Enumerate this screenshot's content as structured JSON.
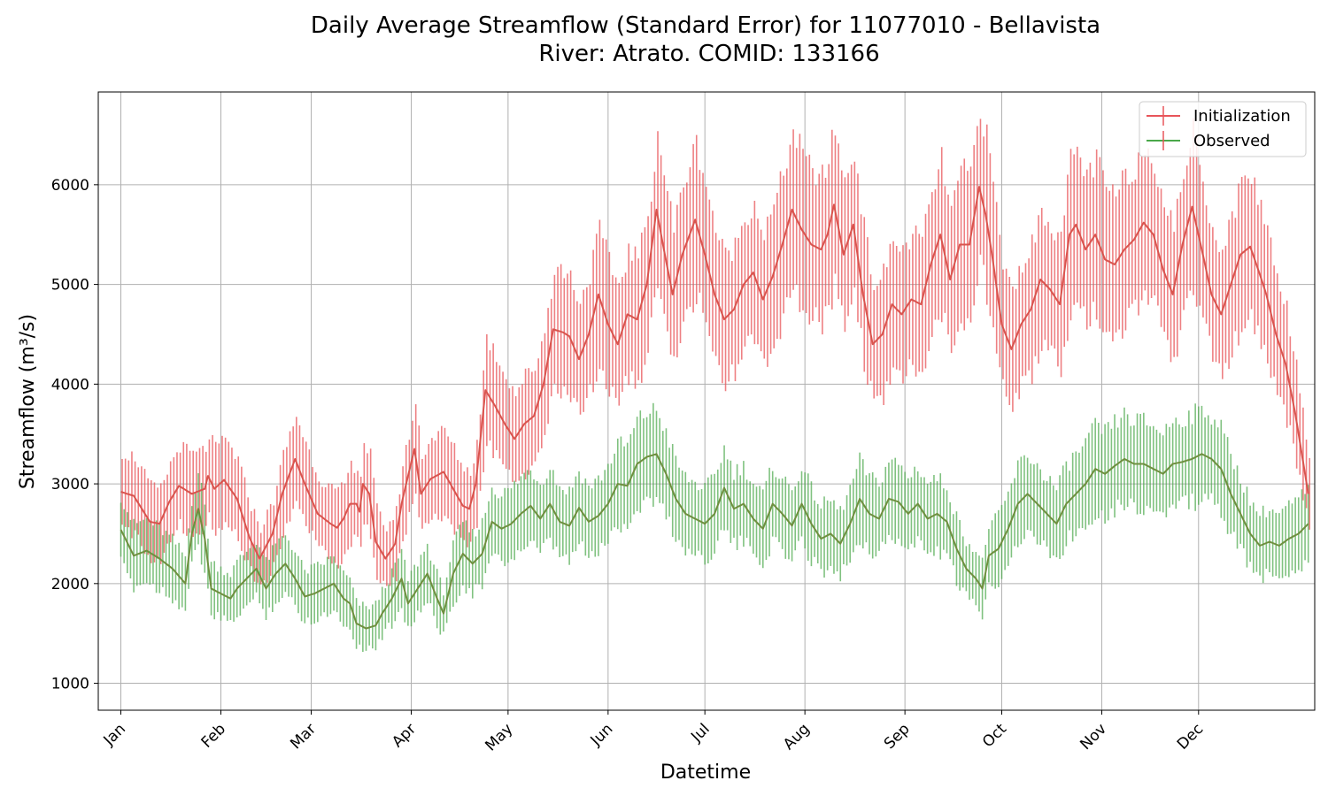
{
  "chart_data": {
    "type": "line",
    "title_line1": "Daily Average Streamflow (Standard Error) for 11077010 - Bellavista",
    "title_line2": "River: Atrato. COMID: 133166",
    "xlabel": "Datetime",
    "ylabel": "Streamflow (m³/s)",
    "ylim": [
      730,
      6930
    ],
    "yticks": [
      1000,
      2000,
      3000,
      4000,
      5000,
      6000
    ],
    "xlim": [
      -6,
      371
    ],
    "xtick_labels": [
      "Jan",
      "Feb",
      "Mar",
      "Apr",
      "May",
      "Jun",
      "Jul",
      "Aug",
      "Sep",
      "Oct",
      "Nov",
      "Dec"
    ],
    "xtick_days": [
      1,
      32,
      60,
      91,
      121,
      152,
      182,
      213,
      244,
      274,
      305,
      335
    ],
    "grid": true,
    "legend_position": "top-right",
    "error_bars": "standard error",
    "series": [
      {
        "name": "Initialization",
        "color": "#e8555a",
        "keypoints": [
          [
            1,
            2920
          ],
          [
            5,
            2880
          ],
          [
            10,
            2620
          ],
          [
            13,
            2600
          ],
          [
            16,
            2820
          ],
          [
            19,
            2980
          ],
          [
            23,
            2900
          ],
          [
            27,
            2950
          ],
          [
            28,
            3080
          ],
          [
            30,
            2950
          ],
          [
            33,
            3040
          ],
          [
            37,
            2850
          ],
          [
            41,
            2450
          ],
          [
            44,
            2250
          ],
          [
            48,
            2500
          ],
          [
            51,
            2900
          ],
          [
            55,
            3250
          ],
          [
            58,
            3000
          ],
          [
            62,
            2700
          ],
          [
            66,
            2600
          ],
          [
            68,
            2560
          ],
          [
            70,
            2650
          ],
          [
            72,
            2800
          ],
          [
            74,
            2800
          ],
          [
            75,
            2720
          ],
          [
            76,
            3000
          ],
          [
            78,
            2900
          ],
          [
            80,
            2420
          ],
          [
            83,
            2250
          ],
          [
            86,
            2400
          ],
          [
            88,
            2800
          ],
          [
            90,
            3080
          ],
          [
            92,
            3350
          ],
          [
            94,
            2900
          ],
          [
            97,
            3050
          ],
          [
            101,
            3120
          ],
          [
            104,
            2950
          ],
          [
            107,
            2780
          ],
          [
            109,
            2750
          ],
          [
            111,
            3000
          ],
          [
            114,
            3940
          ],
          [
            117,
            3780
          ],
          [
            120,
            3600
          ],
          [
            123,
            3450
          ],
          [
            126,
            3600
          ],
          [
            129,
            3680
          ],
          [
            132,
            4000
          ],
          [
            135,
            4550
          ],
          [
            138,
            4520
          ],
          [
            140,
            4480
          ],
          [
            143,
            4250
          ],
          [
            146,
            4500
          ],
          [
            149,
            4900
          ],
          [
            152,
            4600
          ],
          [
            155,
            4400
          ],
          [
            158,
            4700
          ],
          [
            161,
            4650
          ],
          [
            164,
            5000
          ],
          [
            167,
            5750
          ],
          [
            169,
            5400
          ],
          [
            172,
            4900
          ],
          [
            175,
            5300
          ],
          [
            179,
            5650
          ],
          [
            182,
            5300
          ],
          [
            185,
            4900
          ],
          [
            188,
            4650
          ],
          [
            191,
            4750
          ],
          [
            194,
            5000
          ],
          [
            197,
            5120
          ],
          [
            200,
            4850
          ],
          [
            203,
            5080
          ],
          [
            206,
            5400
          ],
          [
            209,
            5750
          ],
          [
            212,
            5550
          ],
          [
            215,
            5400
          ],
          [
            218,
            5350
          ],
          [
            220,
            5500
          ],
          [
            222,
            5800
          ],
          [
            225,
            5300
          ],
          [
            228,
            5600
          ],
          [
            231,
            4900
          ],
          [
            234,
            4400
          ],
          [
            237,
            4500
          ],
          [
            240,
            4800
          ],
          [
            243,
            4700
          ],
          [
            246,
            4850
          ],
          [
            249,
            4800
          ],
          [
            252,
            5200
          ],
          [
            255,
            5500
          ],
          [
            258,
            5050
          ],
          [
            261,
            5400
          ],
          [
            264,
            5400
          ],
          [
            267,
            5980
          ],
          [
            269,
            5700
          ],
          [
            271,
            5300
          ],
          [
            274,
            4600
          ],
          [
            277,
            4350
          ],
          [
            280,
            4600
          ],
          [
            283,
            4750
          ],
          [
            286,
            5050
          ],
          [
            289,
            4950
          ],
          [
            292,
            4800
          ],
          [
            295,
            5500
          ],
          [
            297,
            5600
          ],
          [
            300,
            5350
          ],
          [
            303,
            5500
          ],
          [
            306,
            5250
          ],
          [
            309,
            5200
          ],
          [
            312,
            5350
          ],
          [
            315,
            5450
          ],
          [
            318,
            5620
          ],
          [
            321,
            5500
          ],
          [
            324,
            5150
          ],
          [
            327,
            4900
          ],
          [
            330,
            5400
          ],
          [
            333,
            5780
          ],
          [
            336,
            5350
          ],
          [
            339,
            4900
          ],
          [
            342,
            4700
          ],
          [
            345,
            5000
          ],
          [
            348,
            5300
          ],
          [
            351,
            5380
          ],
          [
            354,
            5100
          ],
          [
            356,
            4900
          ],
          [
            359,
            4500
          ],
          [
            362,
            4200
          ],
          [
            365,
            3700
          ],
          [
            368,
            3100
          ],
          [
            369,
            2900
          ]
        ]
      },
      {
        "name": "Observed",
        "color": "#4aa84a",
        "keypoints": [
          [
            1,
            2540
          ],
          [
            5,
            2280
          ],
          [
            9,
            2330
          ],
          [
            13,
            2250
          ],
          [
            17,
            2150
          ],
          [
            21,
            2000
          ],
          [
            23,
            2500
          ],
          [
            25,
            2750
          ],
          [
            27,
            2450
          ],
          [
            29,
            1950
          ],
          [
            32,
            1900
          ],
          [
            35,
            1850
          ],
          [
            37,
            1950
          ],
          [
            40,
            2050
          ],
          [
            43,
            2150
          ],
          [
            46,
            1950
          ],
          [
            49,
            2100
          ],
          [
            52,
            2200
          ],
          [
            55,
            2050
          ],
          [
            58,
            1870
          ],
          [
            61,
            1900
          ],
          [
            64,
            1950
          ],
          [
            67,
            2000
          ],
          [
            70,
            1850
          ],
          [
            72,
            1800
          ],
          [
            74,
            1600
          ],
          [
            77,
            1550
          ],
          [
            80,
            1580
          ],
          [
            82,
            1700
          ],
          [
            85,
            1850
          ],
          [
            88,
            2050
          ],
          [
            90,
            1800
          ],
          [
            93,
            1950
          ],
          [
            96,
            2100
          ],
          [
            99,
            1850
          ],
          [
            101,
            1700
          ],
          [
            104,
            2100
          ],
          [
            107,
            2300
          ],
          [
            110,
            2200
          ],
          [
            113,
            2300
          ],
          [
            116,
            2620
          ],
          [
            119,
            2550
          ],
          [
            122,
            2600
          ],
          [
            125,
            2700
          ],
          [
            128,
            2780
          ],
          [
            131,
            2650
          ],
          [
            134,
            2800
          ],
          [
            137,
            2620
          ],
          [
            140,
            2580
          ],
          [
            143,
            2760
          ],
          [
            146,
            2620
          ],
          [
            149,
            2680
          ],
          [
            152,
            2800
          ],
          [
            155,
            3000
          ],
          [
            158,
            2980
          ],
          [
            161,
            3200
          ],
          [
            164,
            3270
          ],
          [
            167,
            3300
          ],
          [
            170,
            3100
          ],
          [
            173,
            2850
          ],
          [
            176,
            2700
          ],
          [
            179,
            2650
          ],
          [
            182,
            2600
          ],
          [
            185,
            2700
          ],
          [
            188,
            2960
          ],
          [
            191,
            2750
          ],
          [
            194,
            2800
          ],
          [
            197,
            2650
          ],
          [
            200,
            2550
          ],
          [
            203,
            2800
          ],
          [
            206,
            2700
          ],
          [
            209,
            2580
          ],
          [
            212,
            2800
          ],
          [
            215,
            2600
          ],
          [
            218,
            2450
          ],
          [
            221,
            2500
          ],
          [
            224,
            2400
          ],
          [
            227,
            2600
          ],
          [
            230,
            2850
          ],
          [
            233,
            2700
          ],
          [
            236,
            2650
          ],
          [
            239,
            2850
          ],
          [
            242,
            2820
          ],
          [
            245,
            2700
          ],
          [
            248,
            2800
          ],
          [
            251,
            2650
          ],
          [
            254,
            2700
          ],
          [
            257,
            2620
          ],
          [
            260,
            2350
          ],
          [
            263,
            2150
          ],
          [
            266,
            2050
          ],
          [
            268,
            1950
          ],
          [
            270,
            2280
          ],
          [
            273,
            2350
          ],
          [
            276,
            2550
          ],
          [
            279,
            2800
          ],
          [
            282,
            2900
          ],
          [
            285,
            2800
          ],
          [
            288,
            2700
          ],
          [
            291,
            2600
          ],
          [
            294,
            2800
          ],
          [
            297,
            2900
          ],
          [
            300,
            3000
          ],
          [
            303,
            3150
          ],
          [
            306,
            3100
          ],
          [
            309,
            3180
          ],
          [
            312,
            3250
          ],
          [
            315,
            3200
          ],
          [
            318,
            3200
          ],
          [
            321,
            3150
          ],
          [
            324,
            3100
          ],
          [
            327,
            3200
          ],
          [
            330,
            3220
          ],
          [
            333,
            3250
          ],
          [
            336,
            3300
          ],
          [
            339,
            3250
          ],
          [
            342,
            3150
          ],
          [
            345,
            2900
          ],
          [
            348,
            2700
          ],
          [
            351,
            2500
          ],
          [
            354,
            2380
          ],
          [
            357,
            2420
          ],
          [
            360,
            2380
          ],
          [
            363,
            2450
          ],
          [
            366,
            2500
          ],
          [
            369,
            2600
          ]
        ]
      }
    ]
  }
}
